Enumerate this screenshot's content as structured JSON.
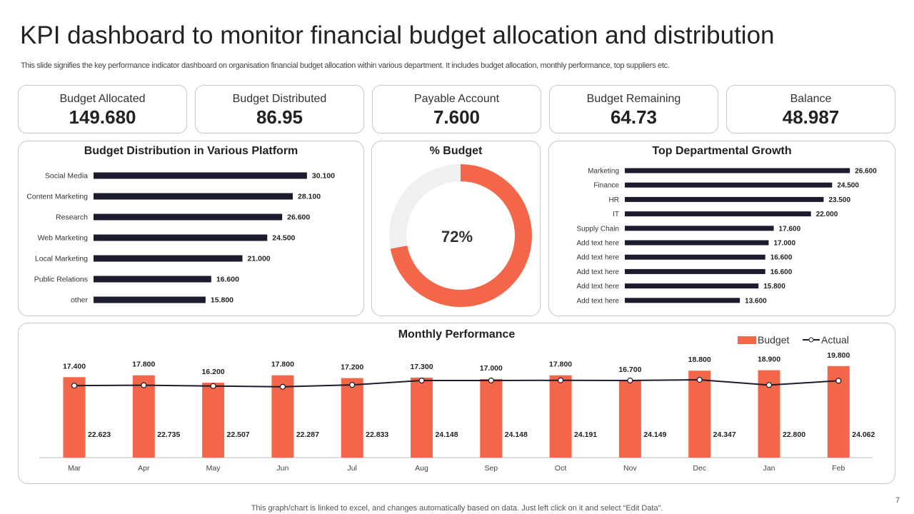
{
  "header": {
    "title": "KPI dashboard to monitor financial budget allocation and distribution",
    "subtitle": "This slide signifies the key performance indicator dashboard on organisation financial budget allocation within various department. It includes budget allocation, monthly performance, top suppliers etc."
  },
  "kpis": [
    {
      "label": "Budget Allocated",
      "value": "149.680"
    },
    {
      "label": "Budget Distributed",
      "value": "86.95"
    },
    {
      "label": "Payable Account",
      "value": "7.600"
    },
    {
      "label": "Budget Remaining",
      "value": "64.73"
    },
    {
      "label": "Balance",
      "value": "48.987"
    }
  ],
  "colors": {
    "bar_dark": "#1c1c2e",
    "accent": "#f4664a",
    "donut_track": "#f0f0f0",
    "line": "#1c1c2e"
  },
  "chart_data": [
    {
      "type": "bar",
      "orientation": "horizontal",
      "title": "Budget Distribution in Various Platform",
      "categories": [
        "Social Media",
        "Content Marketing",
        "Research",
        "Web Marketing",
        "Local Marketing",
        "Public Relations",
        "other"
      ],
      "values": [
        30.1,
        28.1,
        26.6,
        24.5,
        21.0,
        16.6,
        15.8
      ],
      "labels": [
        "30.100",
        "28.100",
        "26.600",
        "24.500",
        "21.000",
        "16.600",
        "15.800"
      ]
    },
    {
      "type": "pie",
      "donut": true,
      "title": "% Budget",
      "values": [
        72,
        28
      ],
      "center_label": "72%"
    },
    {
      "type": "bar",
      "orientation": "horizontal",
      "title": "Top Departmental Growth",
      "categories": [
        "Marketing",
        "Finance",
        "HR",
        "IT",
        "Supply Chain",
        "Add text here",
        "Add text here",
        "Add text here",
        "Add text here",
        "Add text here"
      ],
      "values": [
        26.6,
        24.5,
        23.5,
        22.0,
        17.6,
        17.0,
        16.6,
        16.6,
        15.8,
        13.6
      ],
      "labels": [
        "26.600",
        "24.500",
        "23.500",
        "22.000",
        "17.600",
        "17.000",
        "16.600",
        "16.600",
        "15.800",
        "13.600"
      ]
    },
    {
      "type": "bar",
      "title": "Monthly Performance",
      "categories": [
        "Mar",
        "Apr",
        "May",
        "Jun",
        "Jul",
        "Aug",
        "Sep",
        "Oct",
        "Nov",
        "Dec",
        "Jan",
        "Feb"
      ],
      "legend": "top-right",
      "series": [
        {
          "name": "Budget",
          "type": "bar",
          "values": [
            17.4,
            17.8,
            16.2,
            17.8,
            17.2,
            17.3,
            17.0,
            17.8,
            16.7,
            18.8,
            18.9,
            19.8
          ],
          "labels": [
            "17.400",
            "17.800",
            "16.200",
            "17.800",
            "17.200",
            "17.300",
            "17.000",
            "17.800",
            "16.700",
            "18.800",
            "18.900",
            "19.800"
          ]
        },
        {
          "name": "Actual",
          "type": "line",
          "values": [
            22.623,
            22.735,
            22.507,
            22.287,
            22.833,
            24.148,
            24.148,
            24.191,
            24.149,
            24.347,
            22.8,
            24.062
          ],
          "labels": [
            "22.623",
            "22.735",
            "22.507",
            "22.287",
            "22.833",
            "24.148",
            "24.148",
            "24.191",
            "24.149",
            "24.347",
            "22.800",
            "24.062"
          ]
        }
      ]
    }
  ],
  "footer": {
    "note": "This graph/chart is linked to excel, and changes automatically based on data. Just left click on it and select “Edit Data”.",
    "page_number": "7"
  }
}
